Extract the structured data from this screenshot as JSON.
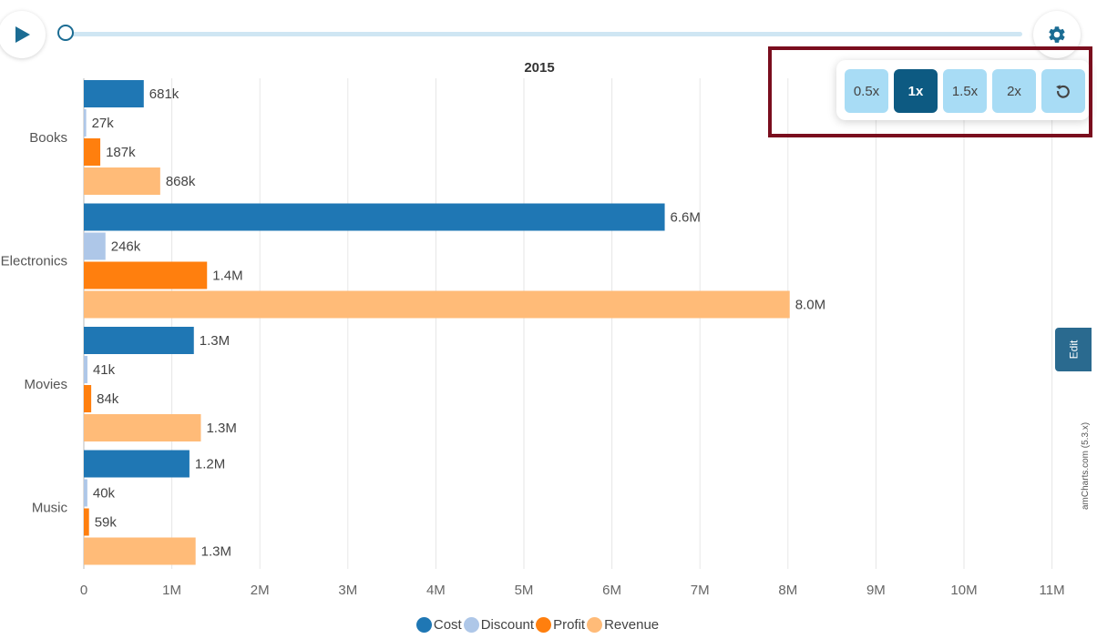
{
  "controls": {
    "play_icon": "play-icon",
    "settings_icon": "gear-icon",
    "reset_icon": "reset-icon",
    "speed_buttons": [
      "0.5x",
      "1x",
      "1.5x",
      "2x"
    ],
    "active_speed": "1x",
    "timeline_progress": 0,
    "edit_label": "Edit"
  },
  "credit": "amCharts.com (5.3.x)",
  "colors": {
    "accent": "#0d5a82",
    "speed_button": "#a8dcf5",
    "highlight": "#7a0e1e"
  },
  "chart_data": {
    "type": "bar",
    "orientation": "horizontal",
    "title": "2015",
    "categories": [
      "Books",
      "Electronics",
      "Movies",
      "Music"
    ],
    "series": [
      {
        "name": "Cost",
        "color": "#1f77b4",
        "values": [
          681000,
          6600000,
          1250000,
          1200000
        ],
        "labels": [
          "681k",
          "6.6M",
          "1.3M",
          "1.2M"
        ]
      },
      {
        "name": "Discount",
        "color": "#aec7e8",
        "values": [
          27000,
          246000,
          41000,
          40000
        ],
        "labels": [
          "27k",
          "246k",
          "41k",
          "40k"
        ]
      },
      {
        "name": "Profit",
        "color": "#ff7f0e",
        "values": [
          187000,
          1400000,
          84000,
          59000
        ],
        "labels": [
          "187k",
          "1.4M",
          "84k",
          "59k"
        ]
      },
      {
        "name": "Revenue",
        "color": "#ffbb78",
        "values": [
          868000,
          8020000,
          1330000,
          1270000
        ],
        "labels": [
          "868k",
          "8.0M",
          "1.3M",
          "1.3M"
        ]
      }
    ],
    "xlim": [
      0,
      11000000
    ],
    "xticks": [
      "0",
      "1M",
      "2M",
      "3M",
      "4M",
      "5M",
      "6M",
      "7M",
      "8M",
      "9M",
      "10M",
      "11M"
    ],
    "grid": true,
    "legend_position": "bottom"
  }
}
